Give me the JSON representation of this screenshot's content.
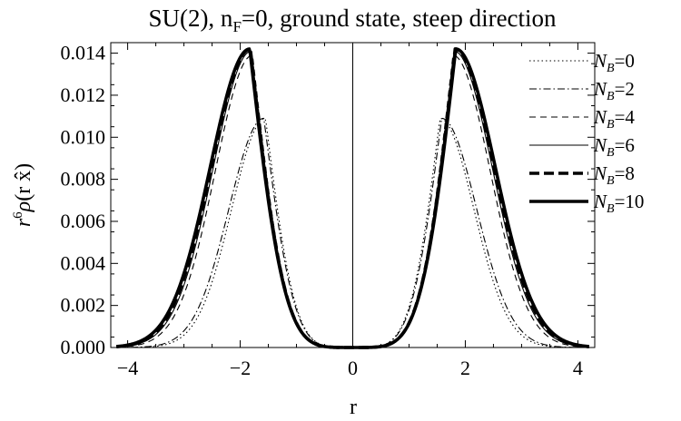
{
  "chart_data": {
    "type": "line",
    "title": "SU(2), n_F=0, ground state, steep direction",
    "xlabel": "r",
    "ylabel": "r^6 ρ(r x̂)",
    "xlim": [
      -4.3,
      4.3
    ],
    "ylim": [
      0,
      0.0145
    ],
    "x_ticks": [
      "-4",
      "-2",
      "0",
      "2",
      "4"
    ],
    "y_ticks": [
      "0.000",
      "0.002",
      "0.004",
      "0.006",
      "0.008",
      "0.010",
      "0.012",
      "0.014"
    ],
    "legend_position": "right",
    "grid": false,
    "series": [
      {
        "name": "N_B=0",
        "style": "dotted",
        "peak_r": 1.55,
        "peak_value": 0.0109,
        "width": 0.6
      },
      {
        "name": "N_B=2",
        "style": "dash-dot",
        "peak_r": 1.58,
        "peak_value": 0.0109,
        "width": 0.62
      },
      {
        "name": "N_B=4",
        "style": "dashed",
        "peak_r": 1.78,
        "peak_value": 0.0139,
        "width": 0.66
      },
      {
        "name": "N_B=6",
        "style": "thin-solid",
        "peak_r": 1.8,
        "peak_value": 0.0141,
        "width": 0.68
      },
      {
        "name": "N_B=8",
        "style": "thick-dashed",
        "peak_r": 1.82,
        "peak_value": 0.0142,
        "width": 0.69
      },
      {
        "name": "N_B=10",
        "style": "thick-solid",
        "peak_r": 1.83,
        "peak_value": 0.0142,
        "width": 0.7
      }
    ]
  }
}
